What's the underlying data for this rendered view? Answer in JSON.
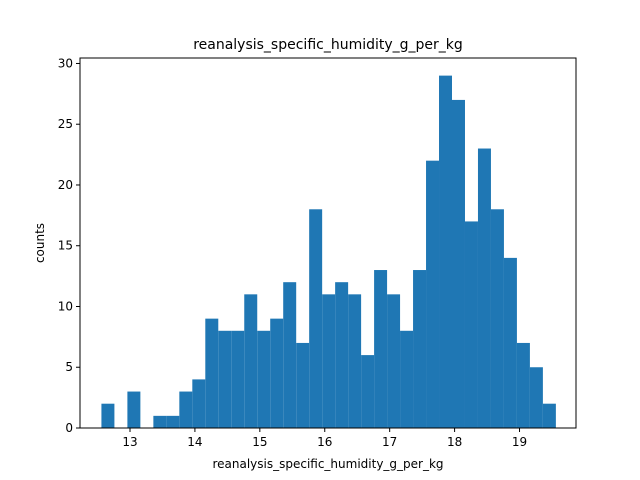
{
  "chart_data": {
    "type": "bar",
    "title": "reanalysis_specific_humidity_g_per_kg",
    "xlabel": "reanalysis_specific_humidity_g_per_kg",
    "ylabel": "counts",
    "xlim": [
      12.23,
      19.87
    ],
    "ylim": [
      0,
      30.45
    ],
    "x_ticks": [
      "13",
      "14",
      "15",
      "16",
      "17",
      "18",
      "19"
    ],
    "y_ticks": [
      "0",
      "5",
      "10",
      "15",
      "20",
      "25",
      "30"
    ],
    "bin_edges": [
      12.56,
      12.76,
      12.96,
      13.16,
      13.36,
      13.56,
      13.76,
      13.96,
      14.16,
      14.36,
      14.56,
      14.76,
      14.96,
      15.16,
      15.36,
      15.56,
      15.76,
      15.96,
      16.16,
      16.36,
      16.56,
      16.76,
      16.96,
      17.16,
      17.36,
      17.56,
      17.76,
      17.96,
      18.16,
      18.36,
      18.56,
      18.76,
      18.96,
      19.16,
      19.36,
      19.56
    ],
    "values": [
      2,
      0,
      3,
      0,
      1,
      1,
      3,
      4,
      9,
      8,
      8,
      11,
      8,
      9,
      12,
      7,
      18,
      11,
      12,
      11,
      6,
      13,
      11,
      8,
      13,
      22,
      29,
      27,
      17,
      23,
      18,
      14,
      7,
      5,
      2
    ],
    "bar_color": "#1f77b4",
    "grid": false
  }
}
